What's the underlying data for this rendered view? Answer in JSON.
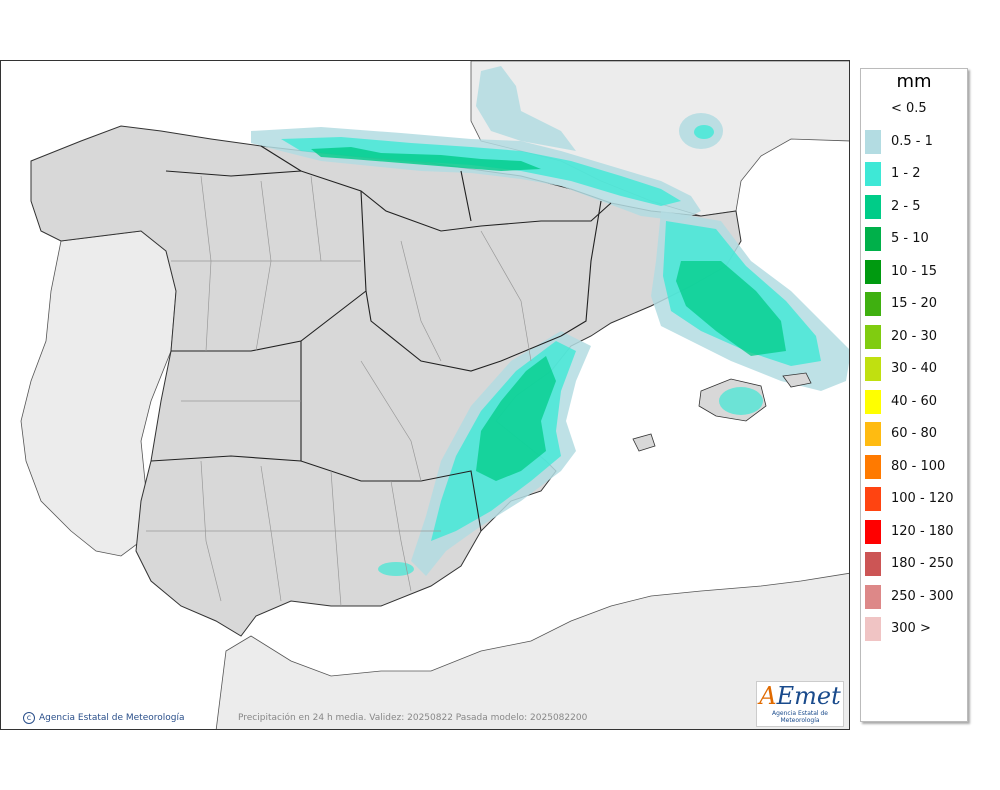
{
  "legend": {
    "title": "mm",
    "items": [
      {
        "label": "< 0.5",
        "color": "#ffffff"
      },
      {
        "label": "0.5 - 1",
        "color": "#b3dce2"
      },
      {
        "label": "1 - 2",
        "color": "#3ee8d6"
      },
      {
        "label": "2 - 5",
        "color": "#00cc88"
      },
      {
        "label": "5 - 10",
        "color": "#00b04a"
      },
      {
        "label": "10 - 15",
        "color": "#009a10"
      },
      {
        "label": "15 - 20",
        "color": "#3fb010"
      },
      {
        "label": "20 - 30",
        "color": "#80cc10"
      },
      {
        "label": "30 - 40",
        "color": "#c0e010"
      },
      {
        "label": "40 - 60",
        "color": "#ffff00"
      },
      {
        "label": "60 - 80",
        "color": "#ffbb11"
      },
      {
        "label": "80 - 100",
        "color": "#ff7a00"
      },
      {
        "label": "100 - 120",
        "color": "#ff4411"
      },
      {
        "label": "120 - 180",
        "color": "#ff0000"
      },
      {
        "label": "180 - 250",
        "color": "#cc5555"
      },
      {
        "label": "250 - 300",
        "color": "#dd8888"
      },
      {
        "label": "300 >",
        "color": "#f0c4c4"
      }
    ]
  },
  "footer": {
    "credit": "Agencia Estatal de Meteorología",
    "caption": "Precipitación en 24 h media. Validez: 20250822 Pasada modelo: 2025082200"
  },
  "logo": {
    "brand_a": "A",
    "brand_rest": "Emet",
    "subtitle": "Agencia Estatal de Meteorología"
  },
  "map": {
    "sea_color": "#ffffff",
    "land_color": "#d8d8d8",
    "foreign_land_color": "#ececec",
    "border_color": "#333333"
  }
}
